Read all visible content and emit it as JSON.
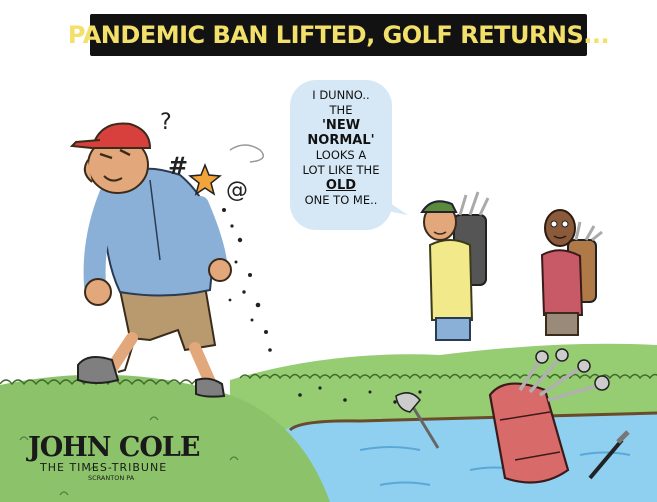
{
  "headline": "PANDEMIC BAN LIFTED, GOLF RETURNS...",
  "speech_bubble": {
    "lines": [
      "I DUNNO..",
      "THE",
      "'NEW",
      "NORMAL'",
      "LOOKS A",
      "LOT LIKE THE",
      "OLD",
      "ONE TO ME.."
    ]
  },
  "signature": {
    "artist": "JOHN COLE",
    "publication": "THE TIMES-TRIBUNE",
    "location": "SCRANTON PA"
  },
  "grawlix": [
    "?",
    "#",
    "@"
  ],
  "icons": [
    "angry-golfer",
    "caddie-green-cap",
    "caddie-red-shirt",
    "golf-bag-in-water-hazard",
    "golf-club-in-water",
    "swear-star"
  ],
  "colors": {
    "banner_bg": "#121212",
    "banner_text": "#f2e06a",
    "bubble_bg": "#d6e8f6",
    "grass": "#8cc36a",
    "water": "#8fd0f0",
    "bag_red": "#d96a6a",
    "cap_red": "#d8403e",
    "cap_green": "#5a8a3a"
  }
}
